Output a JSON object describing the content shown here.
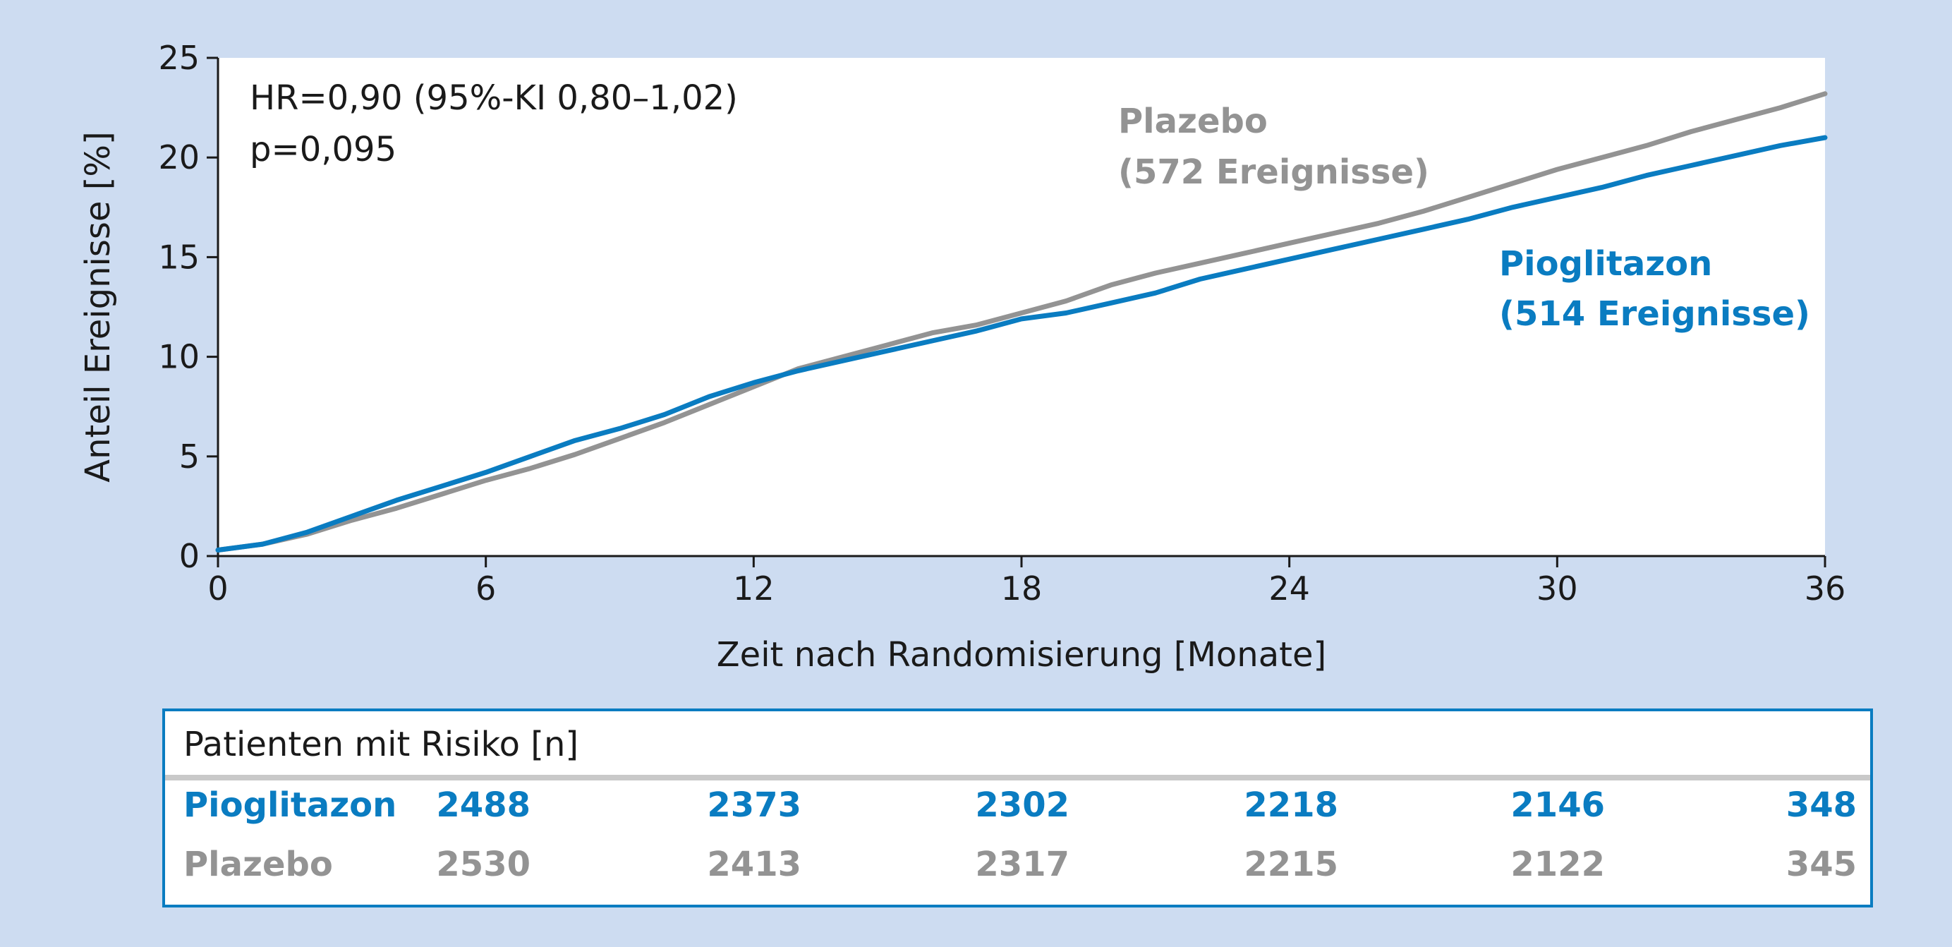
{
  "chart_data": {
    "type": "line",
    "xlabel": "Zeit nach Randomisierung [Monate]",
    "ylabel": "Anteil Ereignisse [%]",
    "xlim": [
      0,
      36
    ],
    "ylim": [
      0,
      25
    ],
    "x_ticks": [
      "0",
      "6",
      "12",
      "18",
      "24",
      "30",
      "36"
    ],
    "y_ticks": [
      "0",
      "5",
      "10",
      "15",
      "20",
      "25"
    ],
    "grid": false,
    "annotations": [
      "HR=0,90 (95%-KI 0,80–1,02)",
      "p=0,095"
    ],
    "series": [
      {
        "name": "Plazebo",
        "label_line1": "Plazebo",
        "label_line2": "(572 Ereignisse)",
        "color": "#939393",
        "x": [
          0,
          1,
          2,
          3,
          4,
          5,
          6,
          7,
          8,
          9,
          10,
          11,
          12,
          13,
          14,
          15,
          16,
          17,
          18,
          19,
          20,
          21,
          22,
          23,
          24,
          25,
          26,
          27,
          28,
          29,
          30,
          31,
          32,
          33,
          34,
          35,
          36
        ],
        "y": [
          0.3,
          0.6,
          1.1,
          1.8,
          2.4,
          3.1,
          3.8,
          4.4,
          5.1,
          5.9,
          6.7,
          7.6,
          8.5,
          9.4,
          10.0,
          10.6,
          11.2,
          11.6,
          12.2,
          12.8,
          13.6,
          14.2,
          14.7,
          15.2,
          15.7,
          16.2,
          16.7,
          17.3,
          18.0,
          18.7,
          19.4,
          20.0,
          20.6,
          21.3,
          21.9,
          22.5,
          23.2
        ]
      },
      {
        "name": "Pioglitazon",
        "label_line1": "Pioglitazon",
        "label_line2": "(514 Ereignisse)",
        "color": "#0a7cc1",
        "x": [
          0,
          1,
          2,
          3,
          4,
          5,
          6,
          7,
          8,
          9,
          10,
          11,
          12,
          13,
          14,
          15,
          16,
          17,
          18,
          19,
          20,
          21,
          22,
          23,
          24,
          25,
          26,
          27,
          28,
          29,
          30,
          31,
          32,
          33,
          34,
          35,
          36
        ],
        "y": [
          0.3,
          0.6,
          1.2,
          2.0,
          2.8,
          3.5,
          4.2,
          5.0,
          5.8,
          6.4,
          7.1,
          8.0,
          8.7,
          9.3,
          9.8,
          10.3,
          10.8,
          11.3,
          11.9,
          12.2,
          12.7,
          13.2,
          13.9,
          14.4,
          14.9,
          15.4,
          15.9,
          16.4,
          16.9,
          17.5,
          18.0,
          18.5,
          19.1,
          19.6,
          20.1,
          20.6,
          21.0
        ]
      }
    ]
  },
  "risk_table": {
    "title": "Patienten mit Risiko [n]",
    "rows": [
      {
        "name": "Pioglitazon",
        "color": "#0a7cc1",
        "values": [
          "2488",
          "2373",
          "2302",
          "2218",
          "2146",
          "348"
        ]
      },
      {
        "name": "Plazebo",
        "color": "#939393",
        "values": [
          "2530",
          "2413",
          "2317",
          "2215",
          "2122",
          "345"
        ]
      }
    ]
  }
}
